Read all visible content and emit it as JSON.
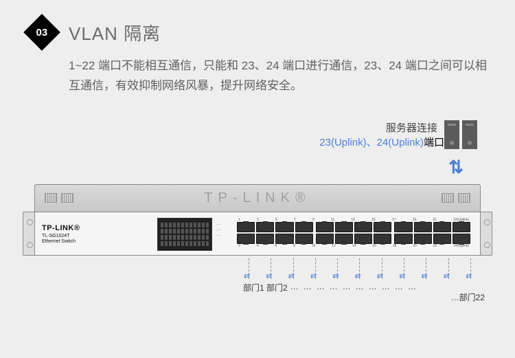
{
  "badge_num": "03",
  "title": "VLAN 隔离",
  "desc": "1~22 端口不能相互通信，只能和 23、24 端口进行通信，23、24 端口之间可以相互通信，有效抑制网络风暴，提升网络安全。",
  "server_label": "服务器连接",
  "server_ports_uplink": "23(Uplink)、24(Uplink)",
  "server_ports_suffix": "端口",
  "arrow_glyph": "⇅",
  "switch": {
    "top_logo": "TP-LINK®",
    "brand": "TP-LINK®",
    "model": "TL-SG1024T",
    "subtitle": "Ethernet Switch",
    "port_nums_top": [
      "1",
      "3",
      "5",
      "7",
      "9",
      "11",
      "13",
      "15",
      "17",
      "19",
      "21",
      "23(Uplink)"
    ],
    "port_nums_bot": [
      "2",
      "4",
      "6",
      "8",
      "10",
      "12",
      "14",
      "16",
      "18",
      "20",
      "22",
      "24(Uplink)"
    ]
  },
  "dept": {
    "d1": "部门1",
    "d2": "部门2",
    "dots": "…",
    "d22": "部门22",
    "swap": "⇄"
  },
  "colors": {
    "bg": "#eeeeee",
    "accent": "#4b7fd6",
    "text": "#606060",
    "badge": "#000000"
  }
}
